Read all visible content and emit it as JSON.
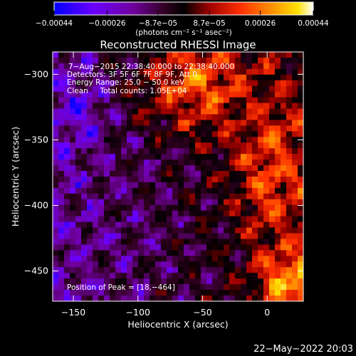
{
  "chart_data": {
    "type": "heatmap",
    "title": "Reconstructed RHESSI Image",
    "xlabel": "Heliocentric X (arcsec)",
    "ylabel": "Heliocentric Y (arcsec)",
    "xlim": [
      -166,
      28
    ],
    "ylim": [
      -473,
      -283
    ],
    "x_ticks": [
      {
        "value": -150,
        "label": "−150"
      },
      {
        "value": -100,
        "label": "−100"
      },
      {
        "value": -50,
        "label": "−50"
      },
      {
        "value": 0,
        "label": "0"
      }
    ],
    "y_ticks": [
      {
        "value": -300,
        "label": "−300"
      },
      {
        "value": -350,
        "label": "−350"
      },
      {
        "value": -400,
        "label": "−400"
      },
      {
        "value": -450,
        "label": "−450"
      }
    ],
    "colorbar": {
      "min": -0.00044,
      "max": 0.00044,
      "ticks": [
        {
          "value": -0.00044,
          "label": "−0.00044"
        },
        {
          "value": -0.00026,
          "label": "−0.00026"
        },
        {
          "value": -8.7e-05,
          "label": "−8.7e−05"
        },
        {
          "value": 8.7e-05,
          "label": "8.7e−05"
        },
        {
          "value": 0.00026,
          "label": "0.00026"
        },
        {
          "value": 0.00044,
          "label": "0.00044"
        }
      ],
      "units_label": "(photons cm⁻² s⁻¹ asec⁻²)",
      "colors": [
        "#0000ff",
        "#6a00ff",
        "#7000a0",
        "#300020",
        "#000000",
        "#a00000",
        "#ff3000",
        "#ff9000",
        "#ffe000",
        "#ffffff"
      ]
    },
    "annotations": [
      "7−Aug−2015 22:38:40.000 to 22:38:40.000",
      "Detectors: 3F 5F 6F 7F 8F 9F, Att 0",
      "Energy Range: 25.0 − 50.0 keV",
      "Clean     Total counts: 1.05E+04"
    ],
    "peak_label": "Position of Peak = [18,−464]",
    "peak_position": [
      18,
      -464
    ]
  },
  "footer": {
    "date": "22−May−2022 20:03"
  }
}
